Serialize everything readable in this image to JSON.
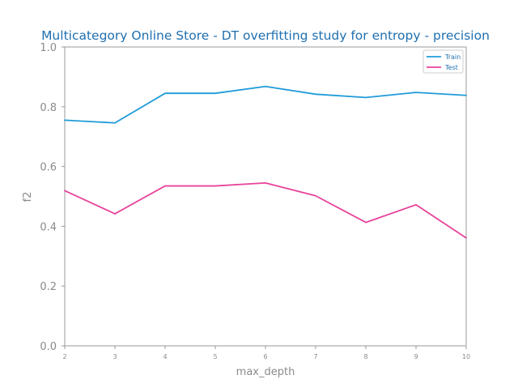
{
  "chart_data": {
    "type": "line",
    "title": "Multicategory Online Store - DT overfitting study for entropy - precision",
    "xlabel": "max_depth",
    "ylabel": "f2",
    "x": [
      2,
      3,
      4,
      5,
      6,
      7,
      8,
      9,
      10
    ],
    "xlim": [
      2,
      10
    ],
    "ylim": [
      0.0,
      1.0
    ],
    "x_ticks": [
      "2",
      "3",
      "4",
      "5",
      "6",
      "7",
      "8",
      "9",
      "10"
    ],
    "y_ticks": [
      "0.0",
      "0.2",
      "0.4",
      "0.6",
      "0.8",
      "1.0"
    ],
    "grid": false,
    "legend_position": "top-right",
    "series": [
      {
        "name": "Train",
        "color": "#1f9bd9",
        "values": [
          0.755,
          0.746,
          0.845,
          0.845,
          0.868,
          0.842,
          0.831,
          0.848,
          0.838
        ]
      },
      {
        "name": "Test",
        "color": "#e8439a",
        "values": [
          0.519,
          0.442,
          0.535,
          0.535,
          0.545,
          0.502,
          0.413,
          0.472,
          0.361
        ]
      }
    ],
    "colors": {
      "title": "#1f6fb0",
      "axis": "#999999",
      "tick_label": "#8a8a8a",
      "axis_label": "#8a8a8a",
      "legend_text": "#1f6fb0"
    }
  }
}
